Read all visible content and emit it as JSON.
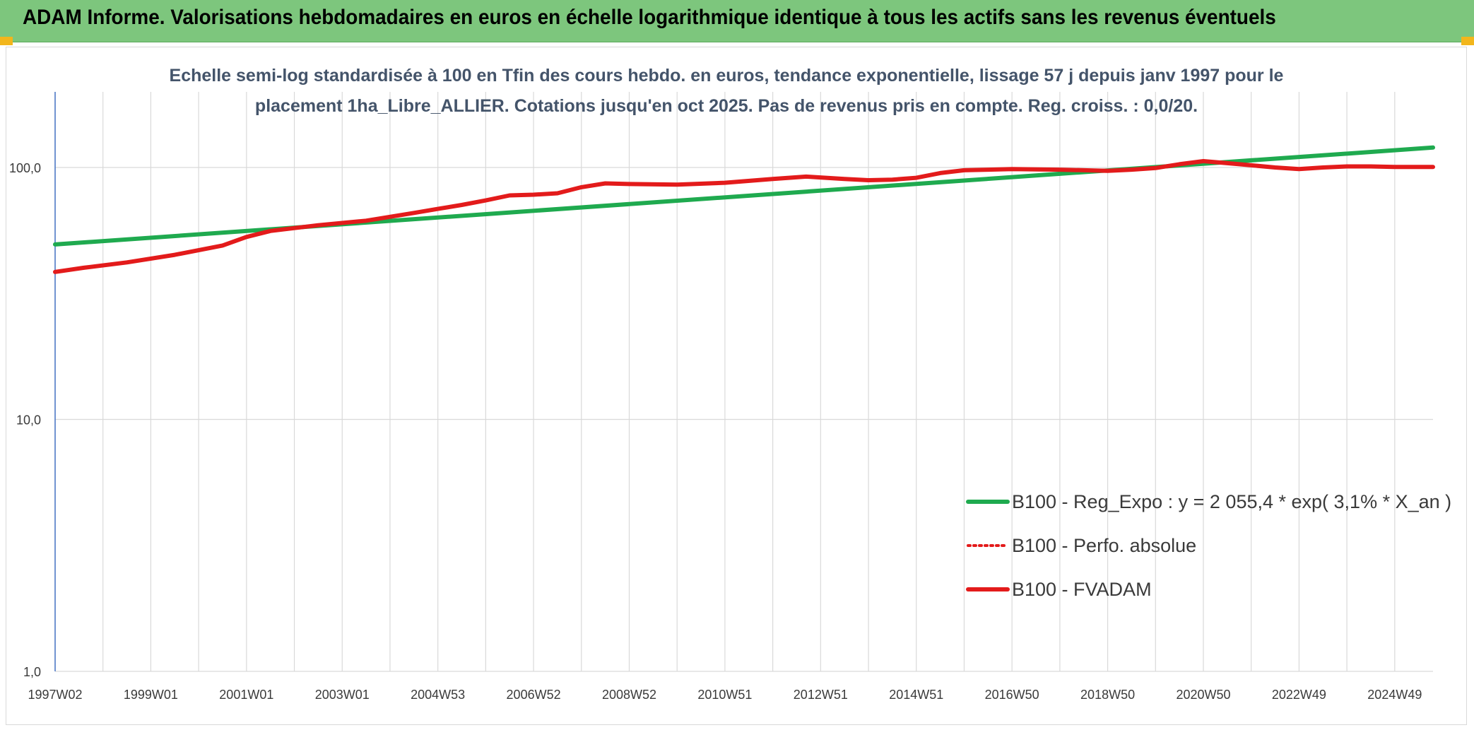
{
  "header": {
    "title": "ADAM Informe. Valorisations hebdomadaires en euros en échelle logarithmique identique à tous les actifs sans les revenus éventuels"
  },
  "colors": {
    "header_bg": "#7dc67d",
    "trend": "#1faa4f",
    "fvadam": "#e31b1b",
    "perfo": "#e31b1b",
    "grid": "#d9d9d9",
    "axis": "#4472c4"
  },
  "chart_data": {
    "type": "line",
    "title_lines": [
      "Echelle semi-log standardisée à 100 en Tfin des cours hebdo. en euros, tendance exponentielle, lissage 57 j depuis janv 1997 pour le",
      "placement 1ha_Libre_ALLIER. Cotations jusqu'en oct 2025. Pas de revenus pris en compte. Reg. croiss. : 0,0/20."
    ],
    "y_scale": "log",
    "ylim": [
      1,
      200
    ],
    "y_ticks": [
      1,
      10,
      100
    ],
    "y_tick_labels": [
      "1,0",
      "10,0",
      "100,0"
    ],
    "xlim": [
      1997.0,
      2025.8
    ],
    "x_ticks": [
      1997.0,
      1999.0,
      2001.0,
      2003.0,
      2005.0,
      2007.0,
      2009.0,
      2011.0,
      2013.0,
      2015.0,
      2017.0,
      2019.0,
      2021.0,
      2023.0,
      2025.0
    ],
    "x_tick_labels": [
      "1997W02",
      "1999W01",
      "2001W01",
      "2003W01",
      "2004W53",
      "2006W52",
      "2008W52",
      "2010W51",
      "2012W51",
      "2014W51",
      "2016W50",
      "2018W50",
      "2020W50",
      "2022W49",
      "2024W49"
    ],
    "x_grid_step": 1,
    "grid": true,
    "legend_position": "bottom-right",
    "series": [
      {
        "name": "B100 - Reg_Expo : y = 2 055,4 * exp( 3,1% *  X_an )",
        "style": "solid-thick",
        "x": [
          1997.0,
          2025.8
        ],
        "y": [
          49.5,
          120.0
        ]
      },
      {
        "name": "B100 - Perfo. absolue",
        "style": "dotted",
        "x": [],
        "y": []
      },
      {
        "name": "B100 - FVADAM",
        "style": "solid-thick",
        "x": [
          1997.0,
          1997.6,
          1998.5,
          1999.5,
          2000.5,
          2001.0,
          2001.5,
          2002.5,
          2003.5,
          2004.5,
          2005.0,
          2005.5,
          2006.0,
          2006.5,
          2007.0,
          2007.5,
          2008.0,
          2008.5,
          2009.0,
          2010.0,
          2011.0,
          2012.0,
          2012.7,
          2013.5,
          2014.0,
          2014.5,
          2015.0,
          2015.5,
          2016.0,
          2016.5,
          2017.0,
          2018.0,
          2019.0,
          2019.5,
          2020.0,
          2020.5,
          2021.0,
          2021.5,
          2022.0,
          2022.5,
          2023.0,
          2023.5,
          2024.0,
          2024.5,
          2025.0,
          2025.8
        ],
        "y": [
          38.5,
          40.0,
          42.0,
          45.0,
          49.0,
          53.0,
          56.0,
          59.0,
          61.5,
          66.0,
          68.5,
          71.0,
          74.0,
          77.5,
          78.0,
          79.0,
          83.5,
          86.5,
          86.0,
          85.5,
          87.0,
          90.0,
          92.0,
          90.0,
          89.0,
          89.5,
          91.0,
          95.0,
          97.5,
          98.0,
          98.5,
          98.0,
          97.0,
          98.0,
          99.5,
          103.0,
          106.0,
          104.0,
          102.0,
          100.0,
          98.5,
          100.0,
          101.0,
          101.0,
          100.5,
          100.5
        ]
      }
    ]
  }
}
